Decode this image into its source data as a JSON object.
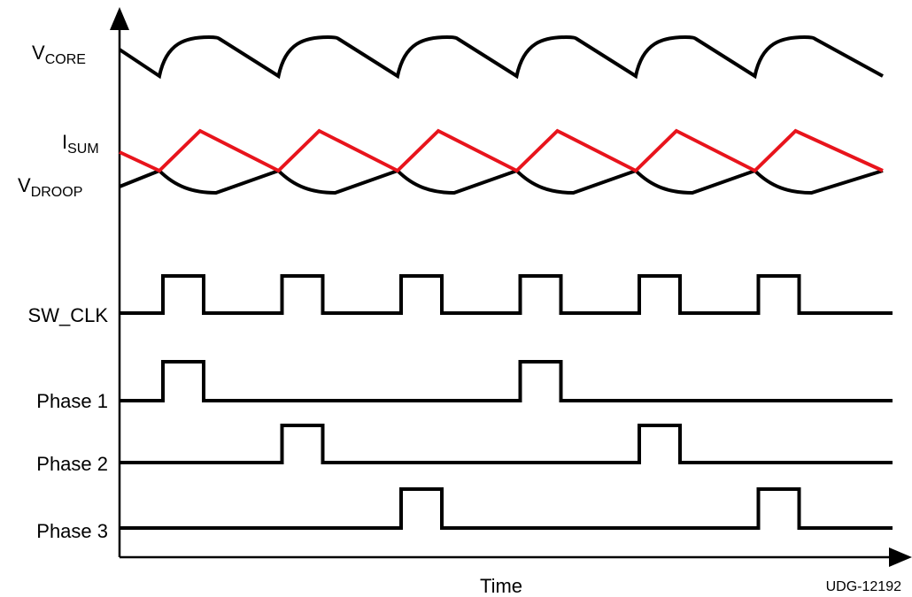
{
  "labels": {
    "vcore_main": "V",
    "vcore_sub": "CORE",
    "isum_main": "I",
    "isum_sub": "SUM",
    "vdroop_main": "V",
    "vdroop_sub": "DROOP",
    "sw_clk": "SW_CLK",
    "phase1": "Phase 1",
    "phase2": "Phase 2",
    "phase3": "Phase 3"
  },
  "x_axis_title": "Time",
  "figure_id": "UDG-12192",
  "colors": {
    "isum_trace": "#e8141c",
    "black_traces": "#000000"
  },
  "sw_clk_pulse_count": 6,
  "phase_pulse_slots": {
    "phase1": [
      0,
      3
    ],
    "phase2": [
      1,
      4
    ],
    "phase3": [
      2,
      5
    ]
  }
}
